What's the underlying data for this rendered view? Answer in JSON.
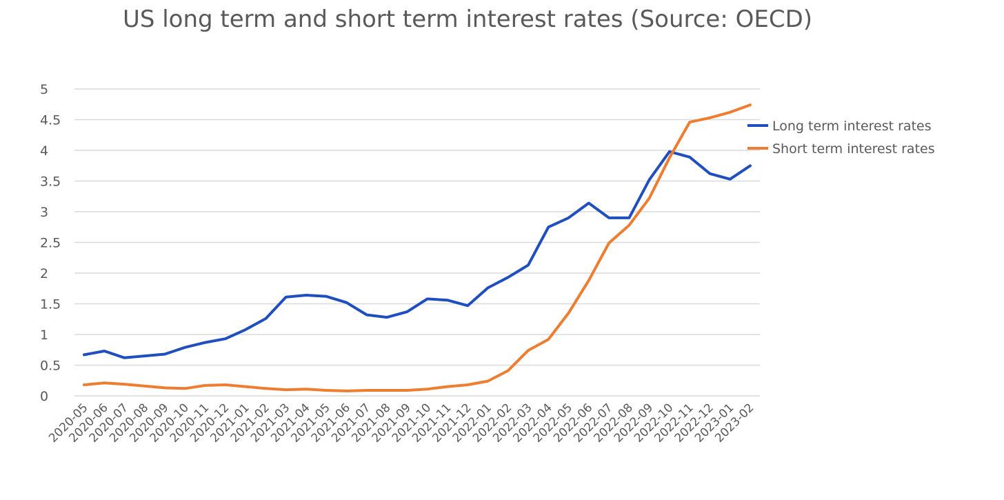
{
  "chart_data": {
    "type": "line",
    "title": "US long term and short term interest rates (Source: OECD)",
    "xlabel": "",
    "ylabel": "",
    "ylim": [
      0,
      5
    ],
    "yticks": [
      "0",
      "0.5",
      "1",
      "1.5",
      "2",
      "2.5",
      "3",
      "3.5",
      "4",
      "4.5",
      "5"
    ],
    "grid": true,
    "legend_position": "right",
    "categories": [
      "2020-05",
      "2020-06",
      "2020-07",
      "2020-08",
      "2020-09",
      "2020-10",
      "2020-11",
      "2020-12",
      "2021-01",
      "2021-02",
      "2021-03",
      "2021-04",
      "2021-05",
      "2021-06",
      "2021-07",
      "2021-08",
      "2021-09",
      "2021-10",
      "2021-11",
      "2021-12",
      "2022-01",
      "2022-02",
      "2022-03",
      "2022-04",
      "2022-05",
      "2022-06",
      "2022-07",
      "2022-08",
      "2022-09",
      "2022-10",
      "2022-11",
      "2022-12",
      "2023-01",
      "2023-02"
    ],
    "series": [
      {
        "name": "Long term interest rates",
        "color": "#1f4fbf",
        "values": [
          0.67,
          0.73,
          0.62,
          0.65,
          0.68,
          0.79,
          0.87,
          0.93,
          1.08,
          1.26,
          1.61,
          1.64,
          1.62,
          1.52,
          1.32,
          1.28,
          1.37,
          1.58,
          1.56,
          1.47,
          1.76,
          1.93,
          2.13,
          2.75,
          2.9,
          3.14,
          2.9,
          2.9,
          3.52,
          3.98,
          3.89,
          3.62,
          3.53,
          3.75
        ]
      },
      {
        "name": "Short term interest rates",
        "color": "#ed7d31",
        "values": [
          0.18,
          0.21,
          0.19,
          0.16,
          0.13,
          0.12,
          0.17,
          0.18,
          0.15,
          0.12,
          0.1,
          0.11,
          0.09,
          0.08,
          0.09,
          0.09,
          0.09,
          0.11,
          0.15,
          0.18,
          0.24,
          0.41,
          0.74,
          0.92,
          1.35,
          1.88,
          2.49,
          2.78,
          3.22,
          3.88,
          4.46,
          4.53,
          4.62,
          4.74
        ]
      }
    ]
  }
}
